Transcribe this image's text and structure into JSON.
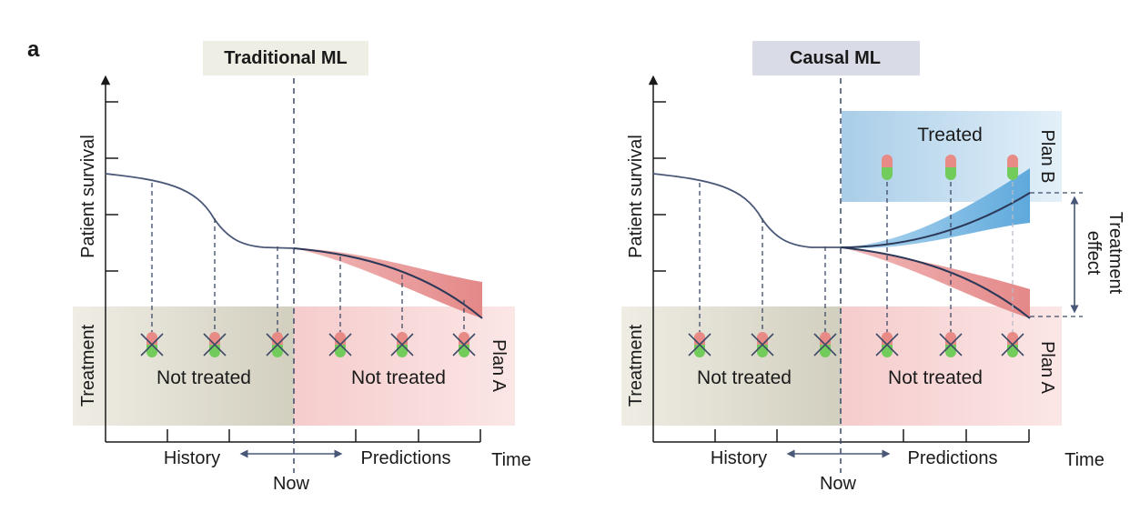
{
  "panel_label": "a",
  "left": {
    "title": "Traditional ML",
    "y_axis_label": "Patient survival",
    "treatment_label": "Treatment",
    "history_region_label": "Not treated",
    "prediction_region_label": "Not treated",
    "plan_label": "Plan A",
    "x_history": "History",
    "x_predictions": "Predictions",
    "x_now": "Now",
    "x_time": "Time"
  },
  "right": {
    "title": "Causal ML",
    "y_axis_label": "Patient survival",
    "treatment_label": "Treatment",
    "history_region_label": "Not treated",
    "prediction_region_label": "Not treated",
    "treated_label": "Treated",
    "plan_a_label": "Plan A",
    "plan_b_label": "Plan B",
    "effect_label_line1": "Treatment",
    "effect_label_line2": "effect",
    "x_history": "History",
    "x_predictions": "Predictions",
    "x_now": "Now",
    "x_time": "Time"
  },
  "colors": {
    "axis": "#1a1a1a",
    "curve": "#4a5878",
    "history_band": "#d6d3c4",
    "prediction_band": "#f7d3d3",
    "treated_band": "#9fc8e6",
    "red_uncertainty": "#e89a9a",
    "blue_uncertainty": "#7ab7e0",
    "pill_top": "#e57f7f",
    "pill_bottom": "#6dca5a",
    "left_title_bg": "#efeee4",
    "right_title_bg": "#d9dbe6"
  }
}
